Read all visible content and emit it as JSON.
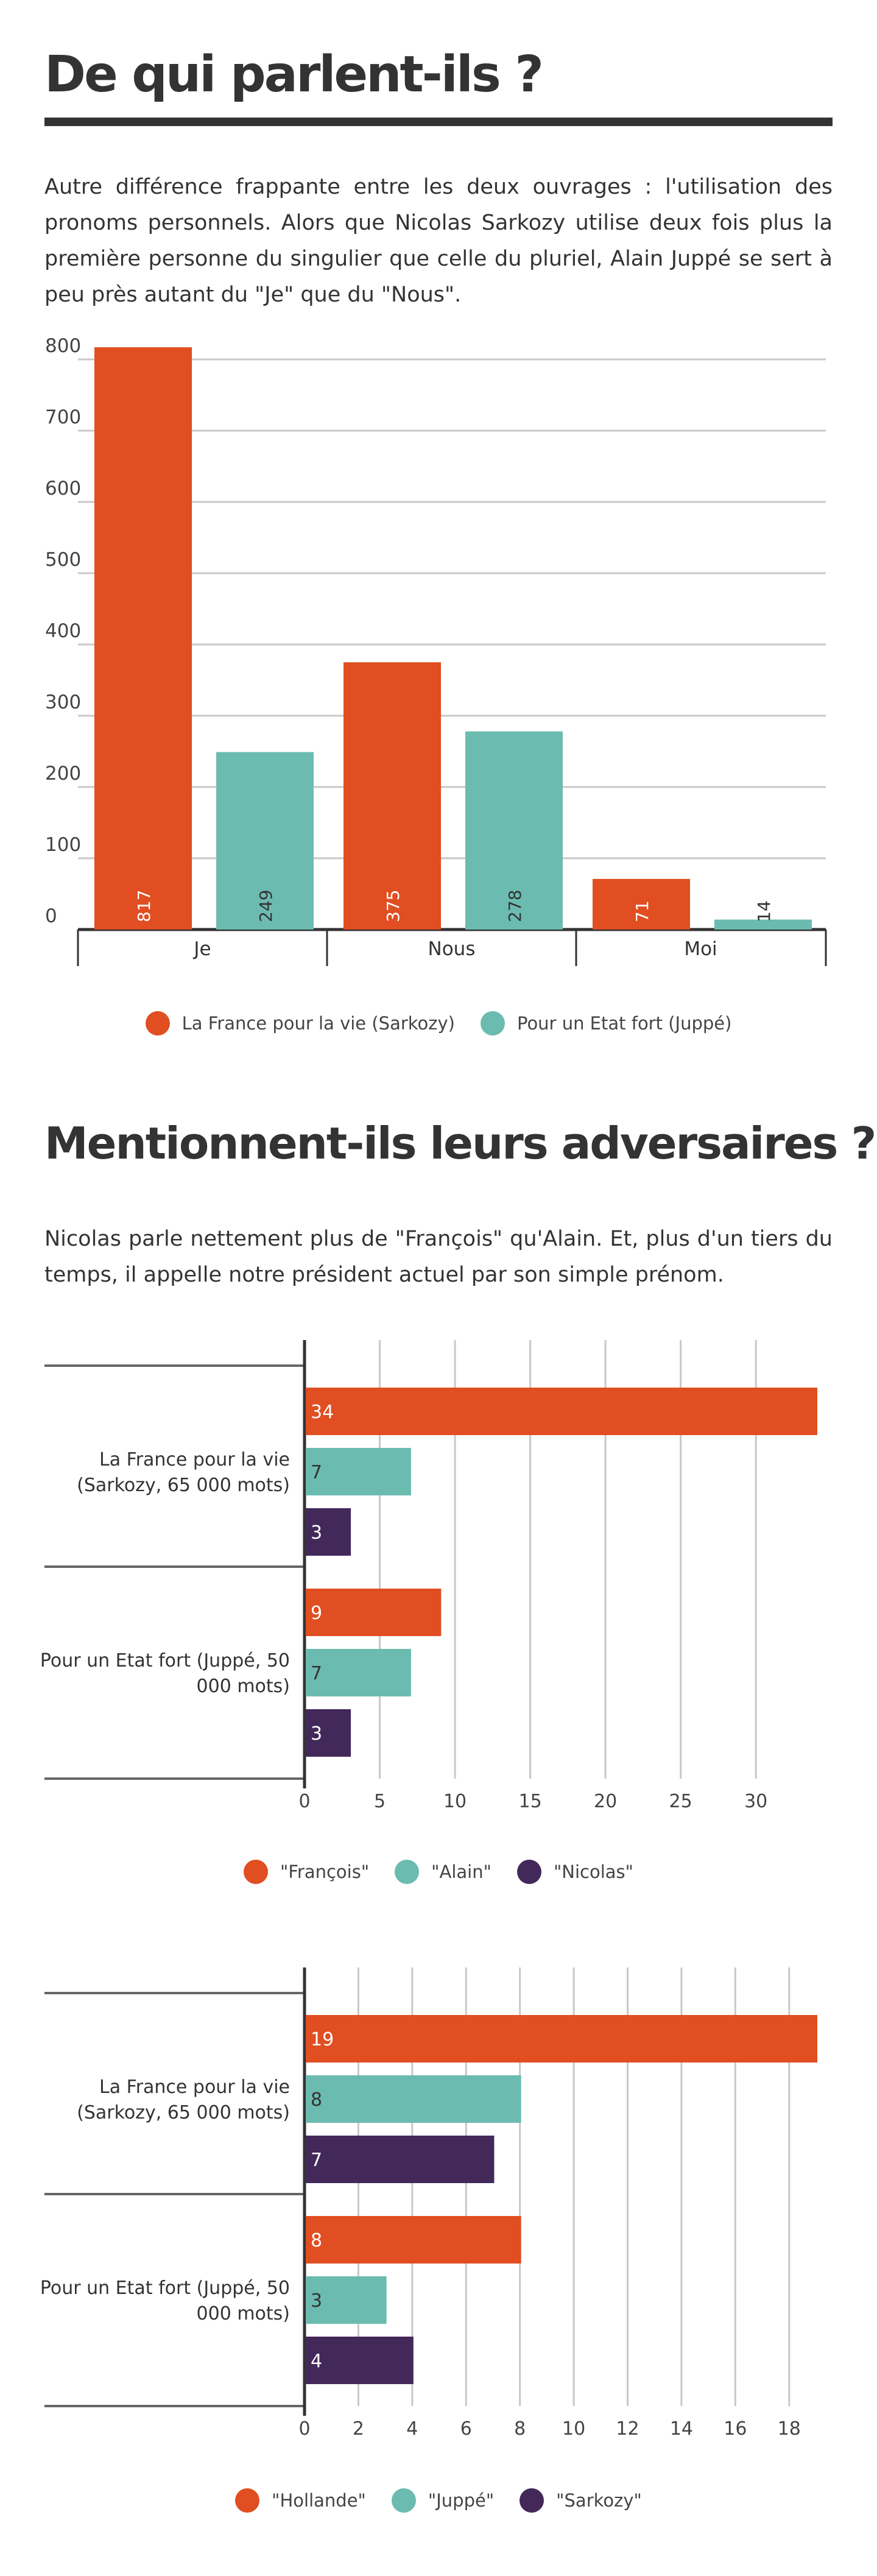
{
  "colors": {
    "sarkozy": "#e04e21",
    "juppe": "#6cbbb0",
    "nicolas": "#43295a",
    "text": "#333333",
    "grid": "#c8c8c8"
  },
  "section1": {
    "title": "De qui parlent-ils ?",
    "intro": "Autre différence frappante entre les deux ouvrages : l'utilisation des pronoms personnels. Alors que Nicolas Sarkozy utilise deux fois plus la première personne du singulier que celle du pluriel, Alain Juppé se sert à peu près autant du \"Je\" que du \"Nous\"."
  },
  "section2": {
    "title": "Mentionnent-ils leurs adversaires ?",
    "intro": "Nicolas parle nettement plus de \"François\" qu'Alain. Et, plus d'un tiers du temps, il appelle notre président actuel par son simple prénom."
  },
  "chart_data": [
    {
      "type": "bar",
      "orientation": "vertical",
      "categories": [
        "Je",
        "Nous",
        "Moi"
      ],
      "series": [
        {
          "name": "La France pour la vie (Sarkozy)",
          "color_key": "sarkozy",
          "values": [
            817,
            375,
            71
          ]
        },
        {
          "name": "Pour un Etat fort (Juppé)",
          "color_key": "juppe",
          "values": [
            249,
            278,
            14
          ]
        }
      ],
      "yticks": [
        0,
        100,
        200,
        300,
        400,
        500,
        600,
        700,
        800
      ],
      "ylim": [
        0,
        800
      ],
      "legend": "bottom"
    },
    {
      "type": "bar",
      "orientation": "horizontal",
      "categories": [
        "La France pour la vie (Sarkozy, 65 000 mots)",
        "Pour un Etat fort (Juppé, 50 000 mots)"
      ],
      "series": [
        {
          "name": "\"François\"",
          "color_key": "sarkozy",
          "values": [
            34,
            9
          ]
        },
        {
          "name": "\"Alain\"",
          "color_key": "juppe",
          "values": [
            7,
            7
          ]
        },
        {
          "name": "\"Nicolas\"",
          "color_key": "nicolas",
          "values": [
            3,
            3
          ]
        }
      ],
      "xticks": [
        0,
        5,
        10,
        15,
        20,
        25,
        30
      ],
      "xlim": [
        0,
        34
      ],
      "legend": "bottom"
    },
    {
      "type": "bar",
      "orientation": "horizontal",
      "categories": [
        "La France pour la vie (Sarkozy, 65 000 mots)",
        "Pour un Etat fort (Juppé, 50 000 mots)"
      ],
      "series": [
        {
          "name": "\"Hollande\"",
          "color_key": "sarkozy",
          "values": [
            19,
            8
          ]
        },
        {
          "name": "\"Juppé\"",
          "color_key": "juppe",
          "values": [
            8,
            3
          ]
        },
        {
          "name": "\"Sarkozy\"",
          "color_key": "nicolas",
          "values": [
            7,
            4
          ]
        }
      ],
      "xticks": [
        0,
        2,
        4,
        6,
        8,
        10,
        12,
        14,
        16,
        18
      ],
      "xlim": [
        0,
        19
      ],
      "legend": "bottom"
    }
  ]
}
